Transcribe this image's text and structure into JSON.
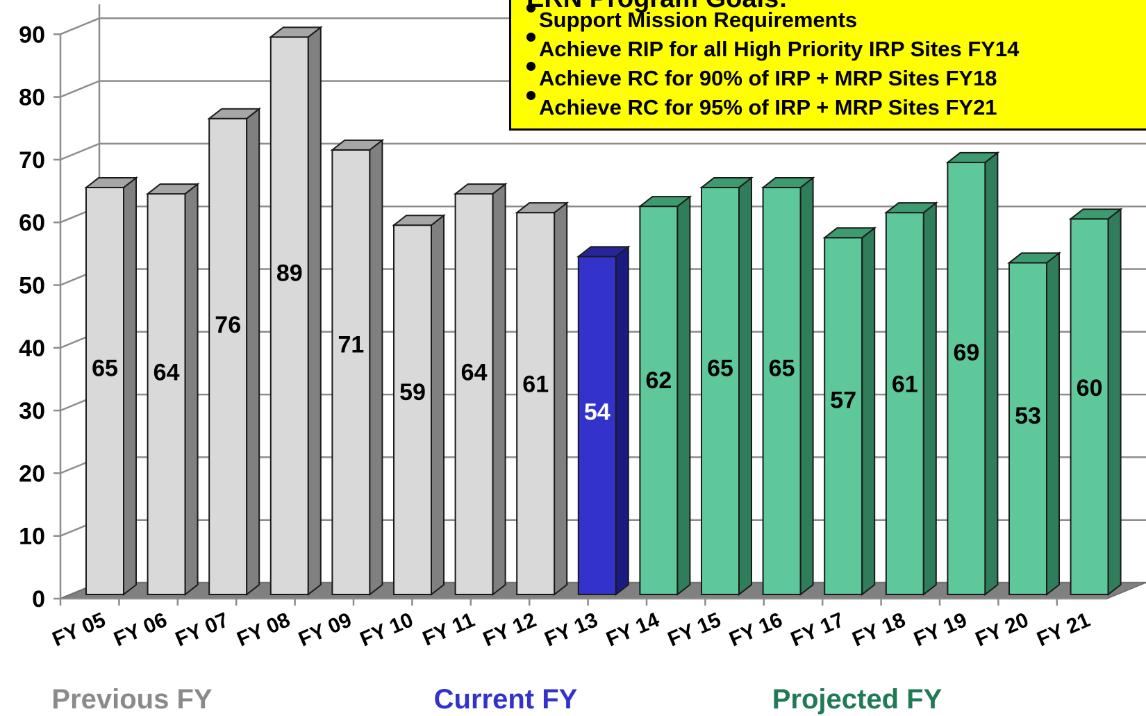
{
  "chart_data": {
    "type": "bar",
    "categories": [
      "FY 05",
      "FY 06",
      "FY 07",
      "FY 08",
      "FY 09",
      "FY 10",
      "FY 11",
      "FY 12",
      "FY 13",
      "FY 14",
      "FY 15",
      "FY 16",
      "FY 17",
      "FY 18",
      "FY 19",
      "FY 20",
      "FY 21"
    ],
    "values": [
      65,
      64,
      76,
      89,
      71,
      59,
      64,
      61,
      54,
      62,
      65,
      65,
      57,
      61,
      69,
      53,
      60
    ],
    "groups": [
      "previous",
      "previous",
      "previous",
      "previous",
      "previous",
      "previous",
      "previous",
      "previous",
      "current",
      "projected",
      "projected",
      "projected",
      "projected",
      "projected",
      "projected",
      "projected",
      "projected"
    ],
    "ylim": [
      0,
      90
    ],
    "yticks": [
      0,
      10,
      20,
      30,
      40,
      50,
      60,
      70,
      80,
      90
    ],
    "grid": true,
    "three_d": true,
    "group_labels": [
      {
        "key": "previous",
        "text": "Previous FY",
        "color": "#8a8a8a"
      },
      {
        "key": "current",
        "text": "Current FY",
        "color": "#3333cc"
      },
      {
        "key": "projected",
        "text": "Projected FY",
        "color": "#1f7a55"
      }
    ]
  },
  "colors": {
    "previous": {
      "front": "#d9d9d9",
      "side": "#808080",
      "top": "#a6a6a6"
    },
    "current": {
      "front": "#3333cc",
      "side": "#1a1a80",
      "top": "#26269a"
    },
    "projected": {
      "front": "#5ec89b",
      "side": "#2f7d5a",
      "top": "#3e9a6f"
    },
    "label_default": "#000000",
    "label_current": "#ffffff",
    "goals_background": "#ffff00"
  },
  "goals": {
    "title": "ERN Program Goals:",
    "items": [
      "Support Mission Requirements",
      "Achieve RIP for all High Priority IRP Sites FY14",
      "Achieve RC for 90% of IRP + MRP Sites FY18",
      "Achieve RC for 95% of IRP + MRP Sites FY21"
    ]
  }
}
